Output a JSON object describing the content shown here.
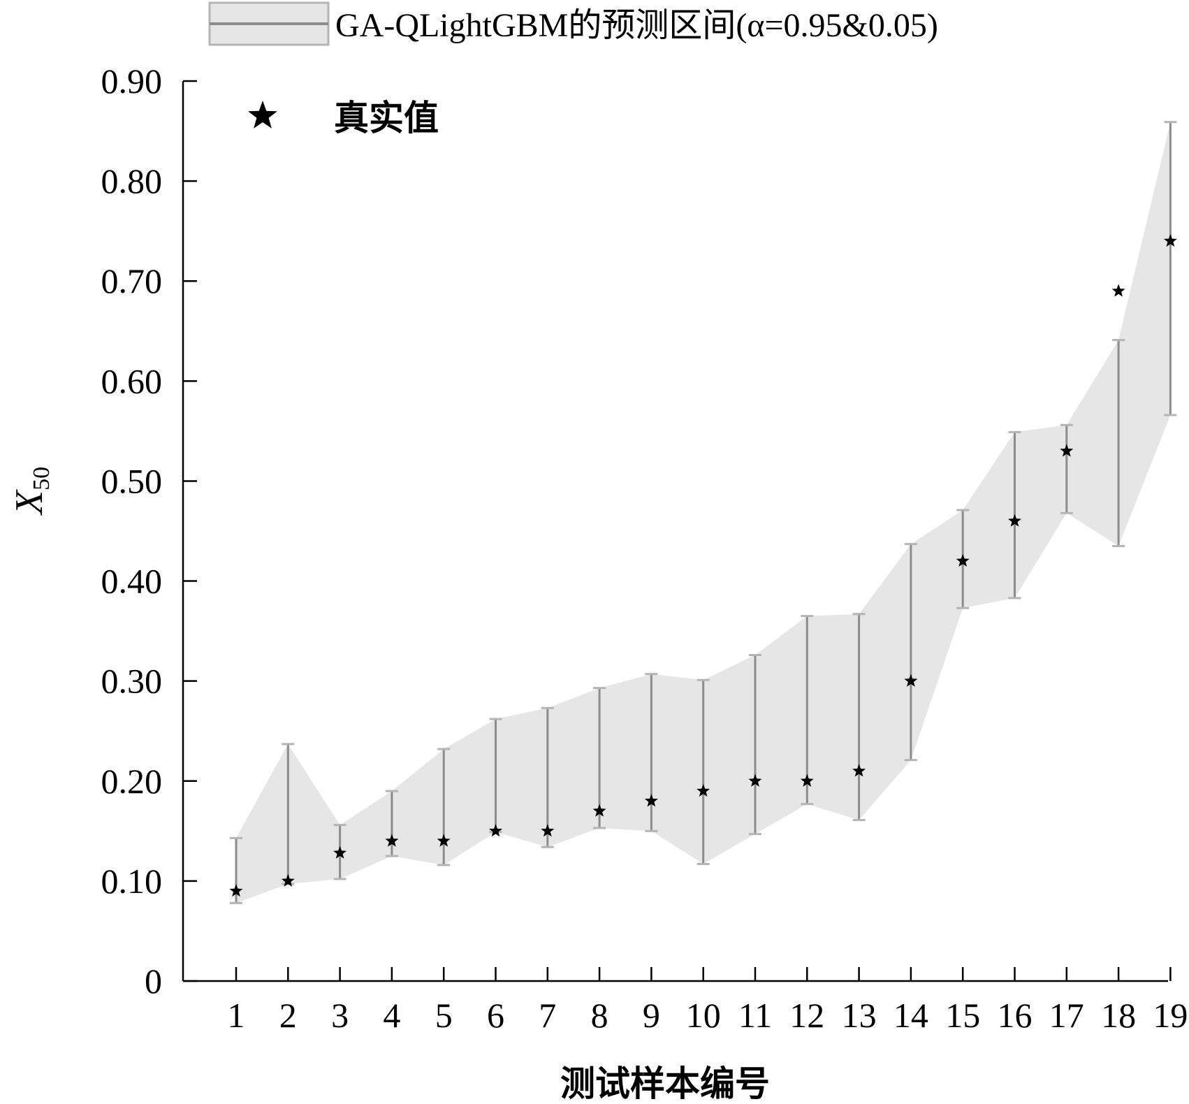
{
  "chart_data": {
    "type": "scatter",
    "xlabel": "测试样本编号",
    "ylabel": "X",
    "ylabel_subscript": "50",
    "ylim": [
      0,
      0.9
    ],
    "yticks": [
      "0",
      "0.10",
      "0.20",
      "0.30",
      "0.40",
      "0.50",
      "0.60",
      "0.70",
      "0.80",
      "0.90"
    ],
    "ytick_values": [
      0,
      0.1,
      0.2,
      0.3,
      0.4,
      0.5,
      0.6,
      0.7,
      0.8,
      0.9
    ],
    "categories": [
      "1",
      "2",
      "3",
      "4",
      "5",
      "6",
      "7",
      "8",
      "9",
      "10",
      "11",
      "12",
      "13",
      "14",
      "15",
      "16",
      "17",
      "18",
      "19"
    ],
    "interval": {
      "name": "GA-QLightGBM的预测区间(α=0.95&0.05)",
      "upper": [
        0.143,
        0.237,
        0.156,
        0.19,
        0.232,
        0.262,
        0.273,
        0.293,
        0.307,
        0.301,
        0.326,
        0.365,
        0.367,
        0.437,
        0.471,
        0.549,
        0.556,
        0.641,
        0.859
      ],
      "lower": [
        0.078,
        0.097,
        0.102,
        0.125,
        0.116,
        0.149,
        0.134,
        0.153,
        0.15,
        0.117,
        0.147,
        0.177,
        0.161,
        0.221,
        0.373,
        0.383,
        0.468,
        0.435,
        0.566
      ]
    },
    "series": [
      {
        "name": "真实值",
        "marker": "star",
        "values": [
          0.09,
          0.1,
          0.128,
          0.14,
          0.14,
          0.15,
          0.15,
          0.17,
          0.18,
          0.19,
          0.2,
          0.2,
          0.21,
          0.3,
          0.42,
          0.46,
          0.53,
          0.69,
          0.74
        ]
      }
    ],
    "colors": {
      "band_fill": "#e6e6e6",
      "band_stroke": "#b4b4b4",
      "whisker": "#8c8c8c",
      "marker": "#000000"
    },
    "legend": {
      "position": "top",
      "band_label": "GA-QLightGBM的预测区间(α=0.95&0.05)",
      "marker_label": "真实值"
    },
    "grid": false
  }
}
